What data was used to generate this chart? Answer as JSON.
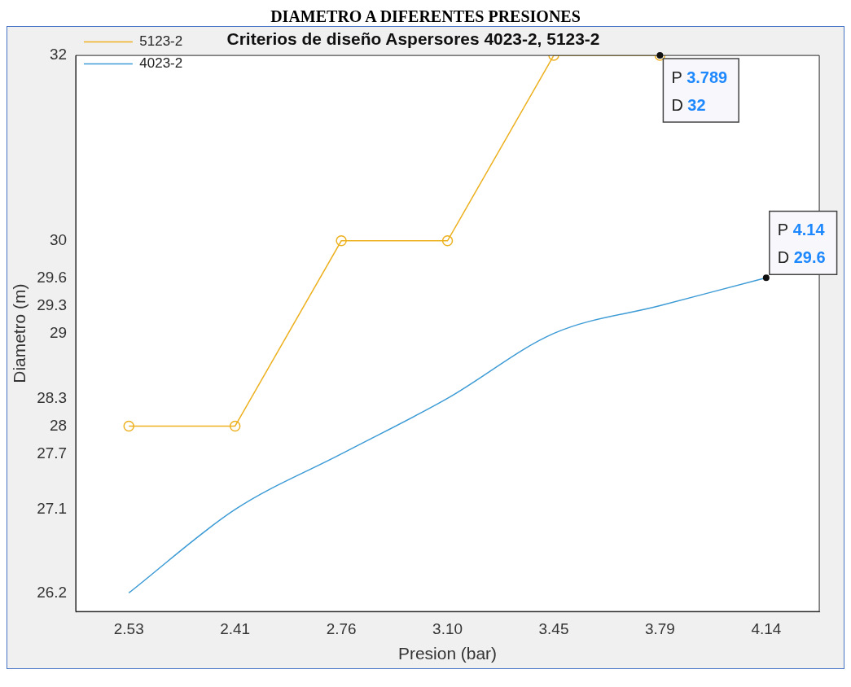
{
  "chart_data": {
    "type": "line",
    "title": "Criterios de diseño Aspersores 4023-2, 5123-2",
    "xlabel": "Presion (bar)",
    "ylabel": "Diametro (m)",
    "categories": [
      "2.53",
      "2.41",
      "2.76",
      "3.10",
      "3.45",
      "3.79",
      "4.14"
    ],
    "series": [
      {
        "name": "5123-2",
        "color": "#edb120",
        "values": [
          28,
          28,
          30,
          30,
          32,
          32,
          null
        ],
        "marker": "circle"
      },
      {
        "name": "4023-2",
        "color": "#3d9bd6",
        "values": [
          26.2,
          27.1,
          27.7,
          28.3,
          29,
          29.3,
          29.6
        ],
        "marker": "none"
      }
    ],
    "ylim": [
      26,
      32
    ],
    "yticks": [
      26.2,
      27.1,
      27.7,
      28,
      28.3,
      29,
      29.3,
      29.6,
      30,
      32
    ],
    "grid": false,
    "legend": "top left",
    "annotations": [
      "DIAMETRO A DIFERENTES PRESIONES",
      {
        "text": "P 3.789\nD 32",
        "x": "3.79",
        "y": 32
      },
      {
        "text": "P 4.14\nD 29.6",
        "x": "4.14",
        "y": 29.6
      }
    ]
  }
}
